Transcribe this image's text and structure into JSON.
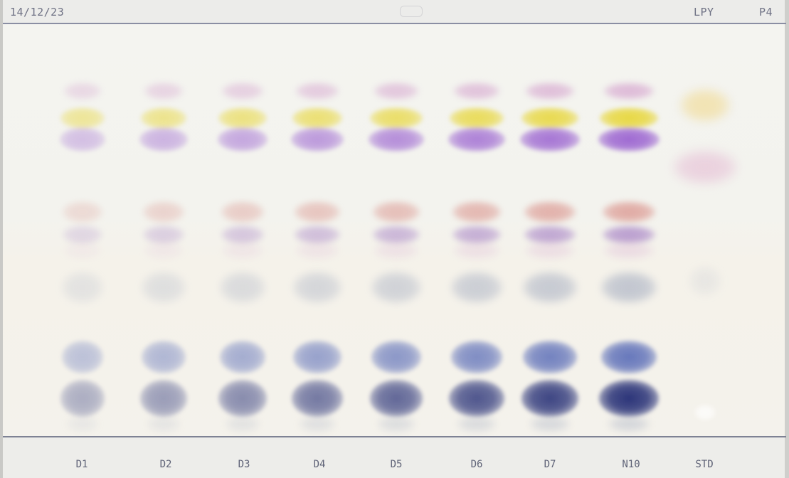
{
  "plate": {
    "date": "14/12/23",
    "code": "LPY",
    "id": "P4"
  },
  "lanes": [
    {
      "label": "D1",
      "intensity": 0.22
    },
    {
      "label": "D2",
      "intensity": 0.33
    },
    {
      "label": "D3",
      "intensity": 0.44
    },
    {
      "label": "D4",
      "intensity": 0.56
    },
    {
      "label": "D5",
      "intensity": 0.67
    },
    {
      "label": "D6",
      "intensity": 0.78
    },
    {
      "label": "D7",
      "intensity": 0.89
    },
    {
      "label": "N10",
      "intensity": 1.0
    },
    {
      "label": "STD",
      "intensity": 0.35
    }
  ],
  "colors": {
    "yellow": "#e7d63a",
    "violet": "#9a62d0",
    "pink_top": "#d6a6cf",
    "salmon": "#d98f88",
    "mauve": "#a884c6",
    "grey_blue": "#9ea7bd",
    "blue_upper": "#5d6fb8",
    "blue_lower": "#2a3378",
    "std_yellow": "#f1d98f",
    "std_pink": "#e4b8d2"
  }
}
